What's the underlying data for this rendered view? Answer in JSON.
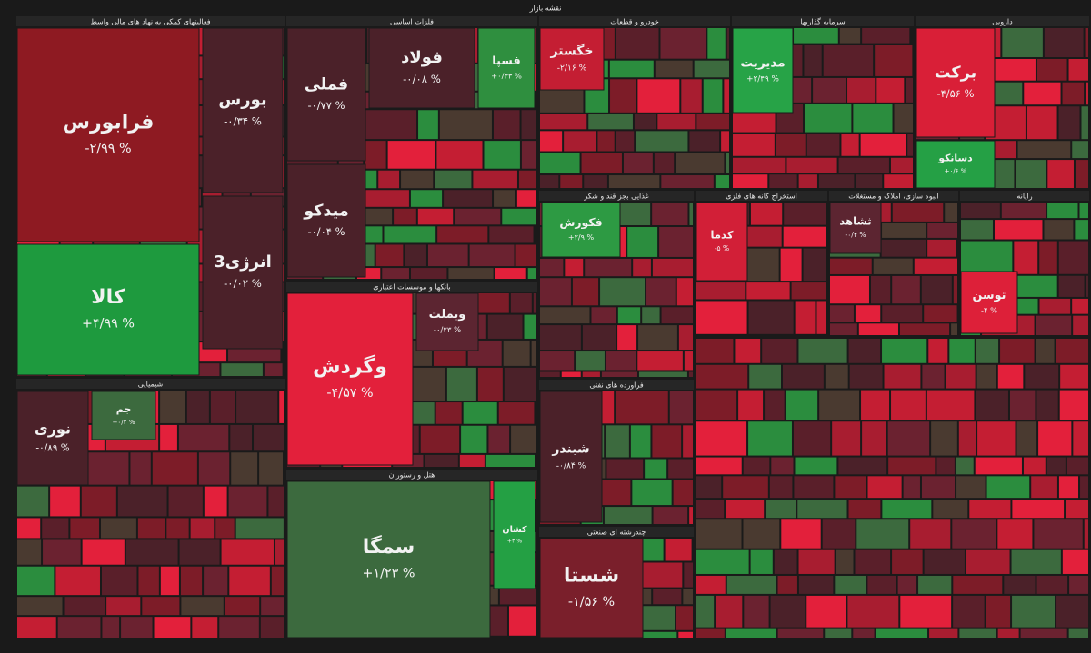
{
  "header": {
    "title": "نقشه بازار"
  },
  "sectors": [
    {
      "title": "فعالیتهای کمکی به نهاد های مالی واسط",
      "tiles": [
        {
          "name": "فرابورس",
          "change": "-۲/۹۹ %"
        },
        {
          "name": "کالا",
          "change": "+۴/۹۹ %"
        },
        {
          "name": "بورس",
          "change": "-۰/۳۴ %"
        },
        {
          "name": "انرژی3",
          "change": "-۰/۰۲ %"
        }
      ]
    },
    {
      "title": "فلزات اساسی",
      "tiles": [
        {
          "name": "فملی",
          "change": "-۰/۷۷ %"
        },
        {
          "name": "میدکو",
          "change": "-۰/۰۴ %"
        },
        {
          "name": "فولاد",
          "change": "-۰/۰۸ %"
        },
        {
          "name": "فسپا",
          "change": "+۰/۳۳ %"
        }
      ]
    },
    {
      "title": "بانکها و موسسات اعتباری",
      "tiles": [
        {
          "name": "وگردش",
          "change": "-۴/۵۷ %"
        },
        {
          "name": "وبملت",
          "change": "-۰/۲۳ %"
        }
      ]
    },
    {
      "title": "هتل و رستوران",
      "tiles": [
        {
          "name": "سمگا",
          "change": "+۱/۲۳ %"
        },
        {
          "name": "کشان",
          "change": "+۳ %"
        }
      ]
    },
    {
      "title": "شیمیایی",
      "tiles": [
        {
          "name": "نوری",
          "change": "-۰/۸۹ %"
        },
        {
          "name": "جم",
          "change": "+۰/۲ %"
        }
      ]
    },
    {
      "title": "خودرو و قطعات",
      "tiles": [
        {
          "name": "خگستر",
          "change": "-۲/۱۶ %"
        }
      ]
    },
    {
      "title": "سرمایه گذاریها",
      "tiles": [
        {
          "name": "مدیریت",
          "change": "+۲/۴۹ %"
        }
      ]
    },
    {
      "title": "دارویی",
      "tiles": [
        {
          "name": "برکت",
          "change": "-۴/۵۶ %"
        },
        {
          "name": "دسانکو",
          "change": "+۰/۶ %"
        }
      ]
    },
    {
      "title": "فرآورده های نفتی",
      "tiles": [
        {
          "name": "شبندر",
          "change": "-۰/۸۴ %"
        }
      ]
    },
    {
      "title": "چندرشته ای صنعتی",
      "tiles": [
        {
          "name": "شستا",
          "change": "-۱/۵۶ %"
        }
      ]
    },
    {
      "title": "غذایی بجز قند و شکر",
      "tiles": [
        {
          "name": "فکورش",
          "change": "+۲/۹ %"
        }
      ]
    },
    {
      "title": "استخراج کانه های فلزی",
      "tiles": [
        {
          "name": "کدما",
          "change": "-۵ %"
        }
      ]
    },
    {
      "title": "انبوه سازی، املاک و مستغلات",
      "tiles": [
        {
          "name": "ثشاهد",
          "change": "-۰/۴ %"
        }
      ]
    },
    {
      "title": "رایانه",
      "tiles": [
        {
          "name": "توسن",
          "change": "-۴ %"
        }
      ]
    }
  ]
}
